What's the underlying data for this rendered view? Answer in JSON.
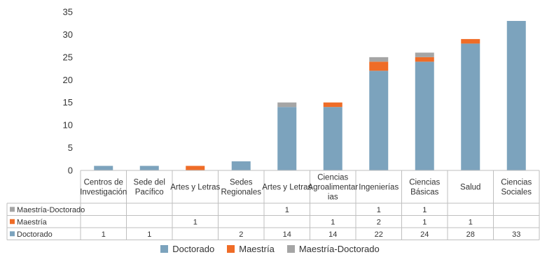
{
  "colors": {
    "doctorado": "#7ca3bd",
    "maestria": "#ef6c27",
    "maestria_doctorado": "#a5a5a5",
    "axis": "#bfbfbf",
    "grid": "#d9d9d9"
  },
  "chart_data": {
    "type": "bar",
    "stacked": true,
    "categories": [
      [
        "Centros de",
        "Investigación"
      ],
      [
        "Sede del",
        "Pacífico"
      ],
      [
        "Artes y Letras"
      ],
      [
        "Sedes",
        "Regionales"
      ],
      [
        "Artes y Letras"
      ],
      [
        "Ciencias",
        "Agroalimentar",
        "ias"
      ],
      [
        "Ingenierías"
      ],
      [
        "Ciencias",
        "Básicas"
      ],
      [
        "Salud"
      ],
      [
        "Ciencias",
        "Sociales"
      ]
    ],
    "series": [
      {
        "name": "Doctorado",
        "color_key": "doctorado",
        "values": [
          1,
          1,
          0,
          2,
          14,
          14,
          22,
          24,
          28,
          33
        ]
      },
      {
        "name": "Maestría",
        "color_key": "maestria",
        "values": [
          0,
          0,
          1,
          0,
          0,
          1,
          2,
          1,
          1,
          0
        ]
      },
      {
        "name": "Maestría-Doctorado",
        "color_key": "maestria_doctorado",
        "values": [
          0,
          0,
          0,
          0,
          1,
          0,
          1,
          1,
          0,
          0
        ]
      }
    ],
    "table_rows_order": [
      "Maestría-Doctorado",
      "Maestría",
      "Doctorado"
    ],
    "ylim": [
      0,
      35
    ],
    "yticks": [
      0,
      5,
      10,
      15,
      20,
      25,
      30,
      35
    ],
    "grid": false,
    "legend_position": "bottom"
  }
}
